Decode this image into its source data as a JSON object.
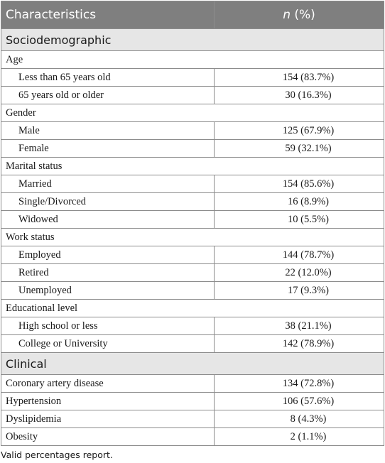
{
  "table": {
    "header": {
      "characteristics": "Characteristics",
      "n_symbol": "n",
      "pct": " (%)"
    },
    "sociodemographic": {
      "title": "Sociodemographic",
      "groups": [
        {
          "label": "Age",
          "rows": [
            {
              "label": "Less than 65 years old",
              "value": "154 (83.7%)"
            },
            {
              "label": "65 years old or older",
              "value": "30 (16.3%)"
            }
          ]
        },
        {
          "label": "Gender",
          "rows": [
            {
              "label": "Male",
              "value": "125 (67.9%)"
            },
            {
              "label": "Female",
              "value": "59 (32.1%)"
            }
          ]
        },
        {
          "label": "Marital status",
          "rows": [
            {
              "label": "Married",
              "value": "154 (85.6%)"
            },
            {
              "label": "Single/Divorced",
              "value": "16 (8.9%)"
            },
            {
              "label": "Widowed",
              "value": "10 (5.5%)"
            }
          ]
        },
        {
          "label": "Work status",
          "rows": [
            {
              "label": "Employed",
              "value": "144 (78.7%)"
            },
            {
              "label": "Retired",
              "value": "22 (12.0%)"
            },
            {
              "label": "Unemployed",
              "value": "17 (9.3%)"
            }
          ]
        },
        {
          "label": "Educational level",
          "rows": [
            {
              "label": "High school or less",
              "value": "38 (21.1%)"
            },
            {
              "label": "College or University",
              "value": "142 (78.9%)"
            }
          ]
        }
      ]
    },
    "clinical": {
      "title": "Clinical",
      "rows": [
        {
          "label": "Coronary artery disease",
          "value": "134 (72.8%)"
        },
        {
          "label": "Hypertension",
          "value": "106 (57.6%)"
        },
        {
          "label": "Dyslipidemia",
          "value": "8 (4.3%)"
        },
        {
          "label": "Obesity",
          "value": "2 (1.1%)"
        }
      ]
    }
  },
  "footnote": "Valid percentages report."
}
